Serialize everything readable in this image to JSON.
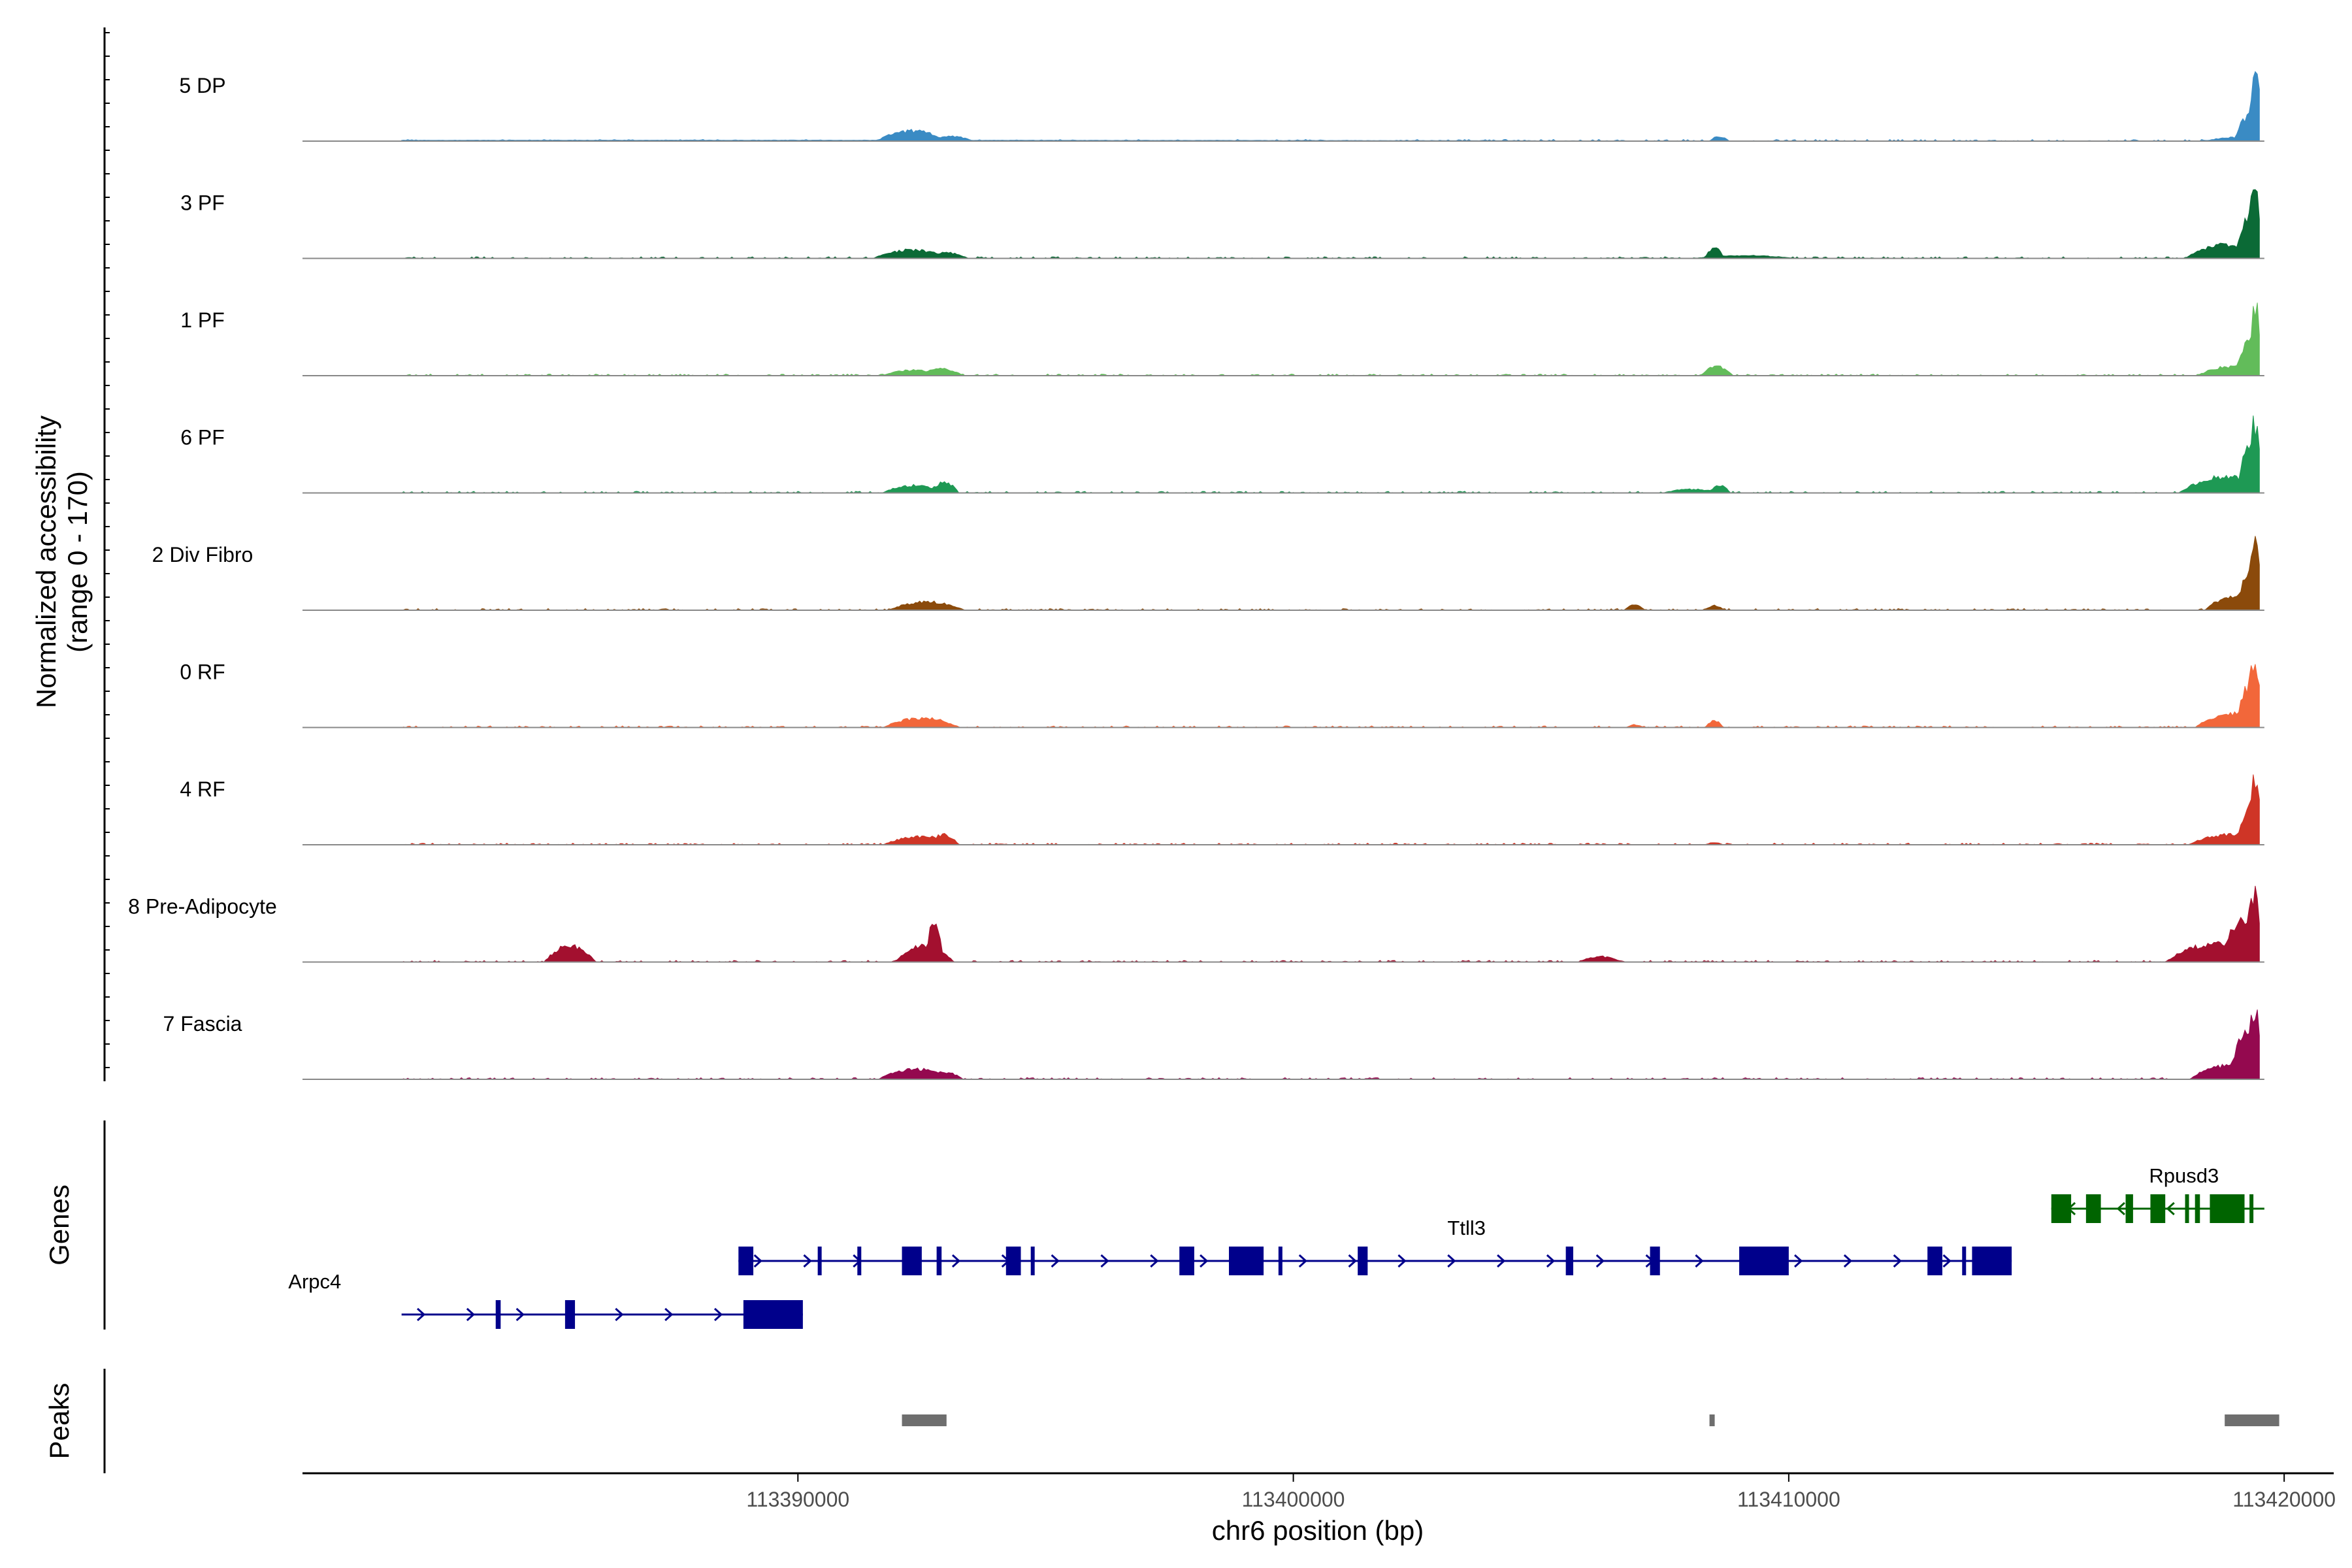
{
  "chart_data": {
    "type": "area",
    "chromosome": "chr6",
    "x_range": [
      113380000,
      113421000
    ],
    "y_title_line1": "Normalized accessibility",
    "y_title_line2": "(range 0 - 170)",
    "y_range": [
      0,
      170
    ],
    "xlabel": "chr6 position (bp)",
    "x_ticks": [
      113390000,
      113400000,
      113410000,
      113420000
    ],
    "x_tick_labels": [
      "113390000",
      "113400000",
      "113410000",
      "113420000"
    ],
    "grid": false,
    "baseline_color": "#888888",
    "tracks": [
      {
        "name": "5 DP",
        "color": "#3a8bc4",
        "peaks": [
          [
            113382000,
            113396000,
            2,
            0.5
          ],
          [
            113392000,
            113392600,
            22,
            0.35
          ],
          [
            113392900,
            113393300,
            10,
            0.3
          ],
          [
            113408500,
            113408700,
            10,
            0.25
          ],
          [
            113418800,
            113419200,
            8,
            0.5
          ],
          [
            113419200,
            113419500,
            60,
            0.35
          ],
          [
            113419350,
            113419500,
            150,
            0.15
          ]
        ]
      },
      {
        "name": "3 PF",
        "color": "#0b6a36",
        "peaks": [
          [
            113392000,
            113392600,
            18,
            0.4
          ],
          [
            113392800,
            113393200,
            12,
            0.3
          ],
          [
            113408400,
            113408600,
            22,
            0.25
          ],
          [
            113408700,
            113409500,
            6,
            0.4
          ],
          [
            113418600,
            113419200,
            30,
            0.5
          ],
          [
            113419200,
            113419500,
            100,
            0.3
          ],
          [
            113419300,
            113419500,
            150,
            0.15
          ]
        ]
      },
      {
        "name": "1 PF",
        "color": "#62bc5a",
        "peaks": [
          [
            113392100,
            113392600,
            12,
            0.4
          ],
          [
            113392700,
            113393100,
            15,
            0.3
          ],
          [
            113408400,
            113408700,
            20,
            0.3
          ],
          [
            113418700,
            113419200,
            20,
            0.45
          ],
          [
            113419200,
            113419500,
            90,
            0.3
          ],
          [
            113419350,
            113419500,
            150,
            0.15
          ]
        ]
      },
      {
        "name": "6 PF",
        "color": "#1e9954",
        "peaks": [
          [
            113392100,
            113392600,
            16,
            0.4
          ],
          [
            113392800,
            113393100,
            22,
            0.25
          ],
          [
            113408500,
            113408700,
            16,
            0.3
          ],
          [
            113407800,
            113408300,
            8,
            0.35
          ],
          [
            113418500,
            113419200,
            35,
            0.45
          ],
          [
            113419200,
            113419500,
            110,
            0.25
          ],
          [
            113419300,
            113419500,
            150,
            0.15
          ]
        ]
      },
      {
        "name": "2 Div Fibro",
        "color": "#8b4a0b",
        "peaks": [
          [
            113392300,
            113392900,
            18,
            0.4
          ],
          [
            113406800,
            113407000,
            12,
            0.25
          ],
          [
            113408400,
            113408600,
            10,
            0.25
          ],
          [
            113418800,
            113419200,
            30,
            0.5
          ],
          [
            113419200,
            113419500,
            90,
            0.3
          ],
          [
            113419300,
            113419500,
            140,
            0.15
          ]
        ]
      },
      {
        "name": "0 RF",
        "color": "#f2673a",
        "peaks": [
          [
            113392200,
            113392800,
            20,
            0.4
          ],
          [
            113406800,
            113407000,
            6,
            0.2
          ],
          [
            113408400,
            113408600,
            14,
            0.2
          ],
          [
            113418700,
            113419200,
            30,
            0.5
          ],
          [
            113419200,
            113419500,
            100,
            0.3
          ],
          [
            113419300,
            113419500,
            150,
            0.15
          ]
        ]
      },
      {
        "name": "4 RF",
        "color": "#cf3526",
        "peaks": [
          [
            113392200,
            113392800,
            18,
            0.4
          ],
          [
            113392800,
            113393100,
            22,
            0.25
          ],
          [
            113408400,
            113408600,
            5,
            0.2
          ],
          [
            113418600,
            113419200,
            22,
            0.45
          ],
          [
            113419200,
            113419500,
            80,
            0.3
          ],
          [
            113419300,
            113419500,
            140,
            0.15
          ]
        ]
      },
      {
        "name": "8 Pre-Adipocyte",
        "color": "#a3102f",
        "peaks": [
          [
            113385200,
            113385600,
            35,
            0.4
          ],
          [
            113392300,
            113392800,
            35,
            0.35
          ],
          [
            113392650,
            113392850,
            85,
            0.2
          ],
          [
            113406000,
            113406400,
            12,
            0.3
          ],
          [
            113418300,
            113419000,
            40,
            0.5
          ],
          [
            113419000,
            113419500,
            100,
            0.3
          ],
          [
            113419300,
            113419500,
            150,
            0.15
          ]
        ]
      },
      {
        "name": "7 Fascia",
        "color": "#94094f",
        "peaks": [
          [
            113392100,
            113392700,
            22,
            0.4
          ],
          [
            113392700,
            113393100,
            16,
            0.3
          ],
          [
            113418600,
            113419100,
            30,
            0.5
          ],
          [
            113419100,
            113419500,
            100,
            0.3
          ],
          [
            113419300,
            113419500,
            150,
            0.15
          ]
        ]
      }
    ],
    "genes": [
      {
        "name": "Arpc4",
        "strand": "+",
        "color": "#00008b",
        "start": 113382000,
        "end": 113390100,
        "row": 2,
        "exons": [
          [
            113383900,
            113384000
          ],
          [
            113385300,
            113385500
          ],
          [
            113388900,
            113390100
          ]
        ]
      },
      {
        "name": "Ttll3",
        "strand": "+",
        "color": "#00008b",
        "start": 113388800,
        "end": 113414500,
        "row": 1,
        "exons": [
          [
            113388800,
            113389100
          ],
          [
            113390400,
            113390450
          ],
          [
            113391200,
            113391250
          ],
          [
            113392100,
            113392500
          ],
          [
            113392800,
            113392900
          ],
          [
            113394200,
            113394500
          ],
          [
            113394700,
            113394750
          ],
          [
            113397700,
            113398000
          ],
          [
            113398700,
            113399400
          ],
          [
            113399700,
            113399750
          ],
          [
            113401300,
            113401500
          ],
          [
            113405500,
            113405650
          ],
          [
            113407200,
            113407400
          ],
          [
            113409000,
            113410000
          ],
          [
            113412800,
            113413100
          ],
          [
            113413500,
            113413550
          ],
          [
            113413700,
            113414500
          ]
        ]
      },
      {
        "name": "Rpusd3",
        "strand": "-",
        "color": "#006400",
        "start": 113415300,
        "end": 113419600,
        "row": 0,
        "exons": [
          [
            113415300,
            113415700
          ],
          [
            113416000,
            113416300
          ],
          [
            113416800,
            113416950
          ],
          [
            113417300,
            113417600
          ],
          [
            113418000,
            113418050
          ],
          [
            113418200,
            113418300
          ],
          [
            113418500,
            113419200
          ],
          [
            113419300,
            113419350
          ]
        ]
      }
    ],
    "peak_regions": [
      [
        113392100,
        113393000
      ],
      [
        113408400,
        113408500
      ],
      [
        113418800,
        113419900
      ]
    ],
    "peak_color": "#6e6e6e",
    "genes_panel_title": "Genes",
    "peaks_panel_title": "Peaks"
  }
}
